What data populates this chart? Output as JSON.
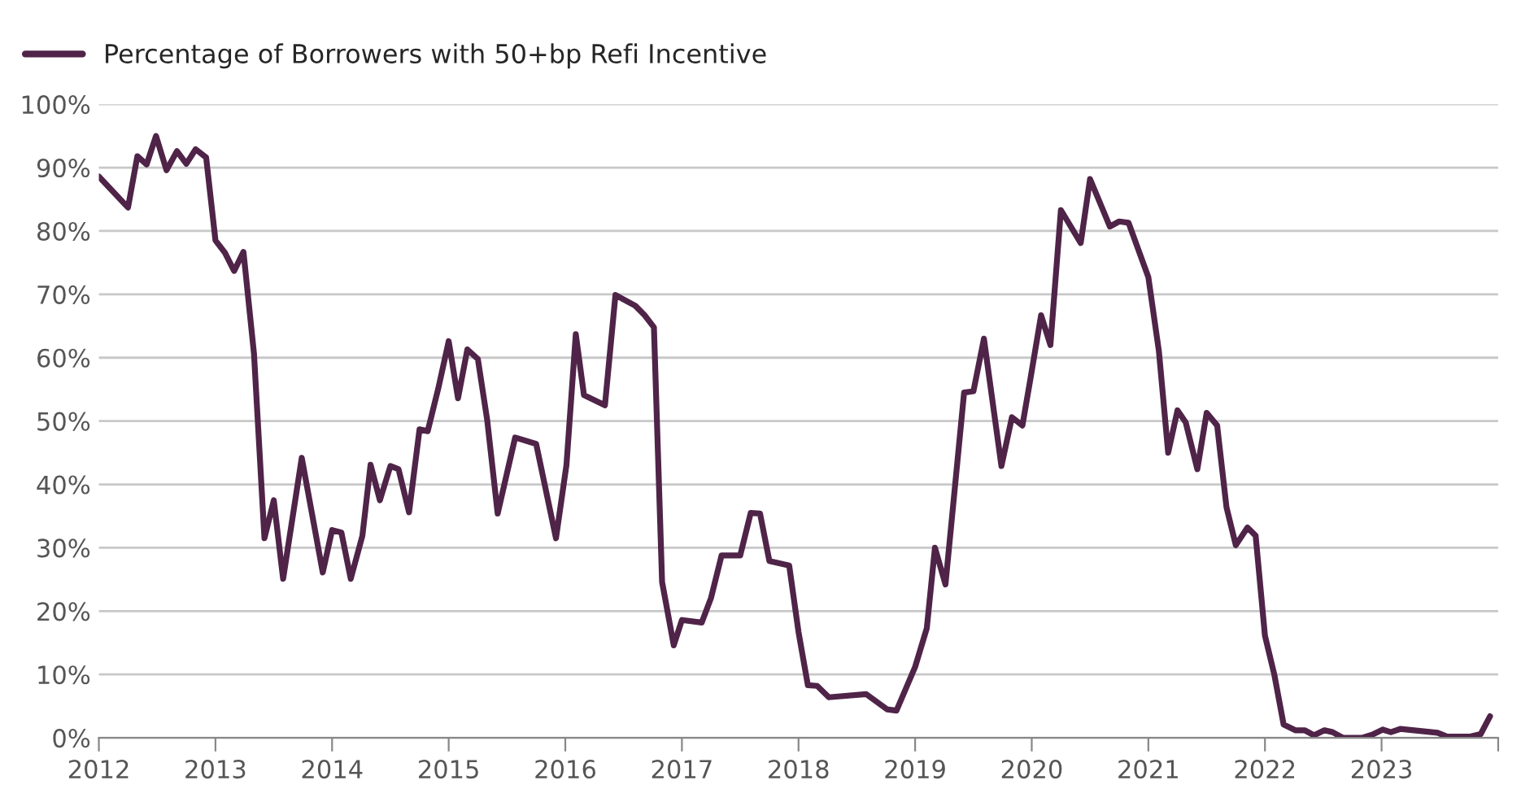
{
  "chart_data": {
    "type": "line",
    "x": [
      2012.0,
      2012.25,
      2012.33,
      2012.41,
      2012.49,
      2012.58,
      2012.67,
      2012.75,
      2012.83,
      2012.92,
      2013.0,
      2013.08,
      2013.16,
      2013.24,
      2013.33,
      2013.42,
      2013.5,
      2013.58,
      2013.74,
      2013.92,
      2014.0,
      2014.08,
      2014.16,
      2014.26,
      2014.33,
      2014.41,
      2014.5,
      2014.57,
      2014.66,
      2014.75,
      2014.82,
      2014.91,
      2015.0,
      2015.08,
      2015.16,
      2015.25,
      2015.33,
      2015.42,
      2015.57,
      2015.75,
      2015.92,
      2016.01,
      2016.09,
      2016.16,
      2016.34,
      2016.43,
      2016.6,
      2016.68,
      2016.76,
      2016.83,
      2016.93,
      2017.0,
      2017.17,
      2017.25,
      2017.34,
      2017.5,
      2017.59,
      2017.67,
      2017.75,
      2017.92,
      2018.0,
      2018.08,
      2018.16,
      2018.26,
      2018.58,
      2018.76,
      2018.84,
      2019.0,
      2019.1,
      2019.17,
      2019.26,
      2019.42,
      2019.5,
      2019.59,
      2019.74,
      2019.83,
      2019.92,
      2019.99,
      2020.08,
      2020.16,
      2020.25,
      2020.42,
      2020.5,
      2020.67,
      2020.75,
      2020.83,
      2021.0,
      2021.09,
      2021.17,
      2021.25,
      2021.32,
      2021.42,
      2021.5,
      2021.59,
      2021.67,
      2021.75,
      2021.85,
      2021.92,
      2022.0,
      2022.08,
      2022.16,
      2022.26,
      2022.34,
      2022.42,
      2022.51,
      2022.58,
      2022.67,
      2022.83,
      2022.92,
      2023.01,
      2023.08,
      2023.16,
      2023.48,
      2023.56,
      2023.76,
      2023.85,
      2023.93
    ],
    "series": [
      {
        "name": "Percentage of Borrowers with 50+bp Refi Incentive",
        "color": "#4f2448",
        "values": [
          88.6,
          83.7,
          91.8,
          90.5,
          95.0,
          89.6,
          92.6,
          90.6,
          92.9,
          91.6,
          78.5,
          76.6,
          73.7,
          76.7,
          60.7,
          31.5,
          37.5,
          25.1,
          44.2,
          26.1,
          32.8,
          32.4,
          25.1,
          31.9,
          43.1,
          37.5,
          42.9,
          42.4,
          35.6,
          48.7,
          48.4,
          55.1,
          62.6,
          53.6,
          61.3,
          59.8,
          50.2,
          35.4,
          47.4,
          46.4,
          31.5,
          43.1,
          63.7,
          54.1,
          52.5,
          69.9,
          68.2,
          66.7,
          64.8,
          24.6,
          14.6,
          18.6,
          18.2,
          22.1,
          28.8,
          28.8,
          35.5,
          35.4,
          27.9,
          27.2,
          16.7,
          8.3,
          8.2,
          6.4,
          6.9,
          4.5,
          4.3,
          11.2,
          17.3,
          30.0,
          24.2,
          54.5,
          54.7,
          63.0,
          42.9,
          50.6,
          49.3,
          56.8,
          66.7,
          62.0,
          83.3,
          78.1,
          88.2,
          80.7,
          81.5,
          81.3,
          72.7,
          61.1,
          45.0,
          51.7,
          49.8,
          42.4,
          51.3,
          49.3,
          36.4,
          30.4,
          33.2,
          31.9,
          16.1,
          10.0,
          2.1,
          1.2,
          1.2,
          0.4,
          1.2,
          0.9,
          0.0,
          0.0,
          0.5,
          1.3,
          0.9,
          1.4,
          0.8,
          0.2,
          0.2,
          0.6,
          3.4
        ]
      }
    ],
    "xlim": [
      2012,
      2024
    ],
    "xticks": [
      2012,
      2013,
      2014,
      2015,
      2016,
      2017,
      2018,
      2019,
      2020,
      2021,
      2022,
      2023,
      {
        "value": 2024,
        "label": null
      }
    ],
    "ylim": [
      0,
      100
    ],
    "yticks": [
      {
        "value": 0,
        "label": "0%"
      },
      {
        "value": 10,
        "label": "10%"
      },
      {
        "value": 20,
        "label": "20%"
      },
      {
        "value": 30,
        "label": "30%"
      },
      {
        "value": 40,
        "label": "40%"
      },
      {
        "value": 50,
        "label": "50%"
      },
      {
        "value": 60,
        "label": "60%"
      },
      {
        "value": 70,
        "label": "70%"
      },
      {
        "value": 80,
        "label": "80%"
      },
      {
        "value": 90,
        "label": "90%"
      },
      {
        "value": 100,
        "label": "100%"
      }
    ],
    "grid": "y",
    "legend": "top left",
    "marker": "none",
    "line_style": "solid"
  }
}
